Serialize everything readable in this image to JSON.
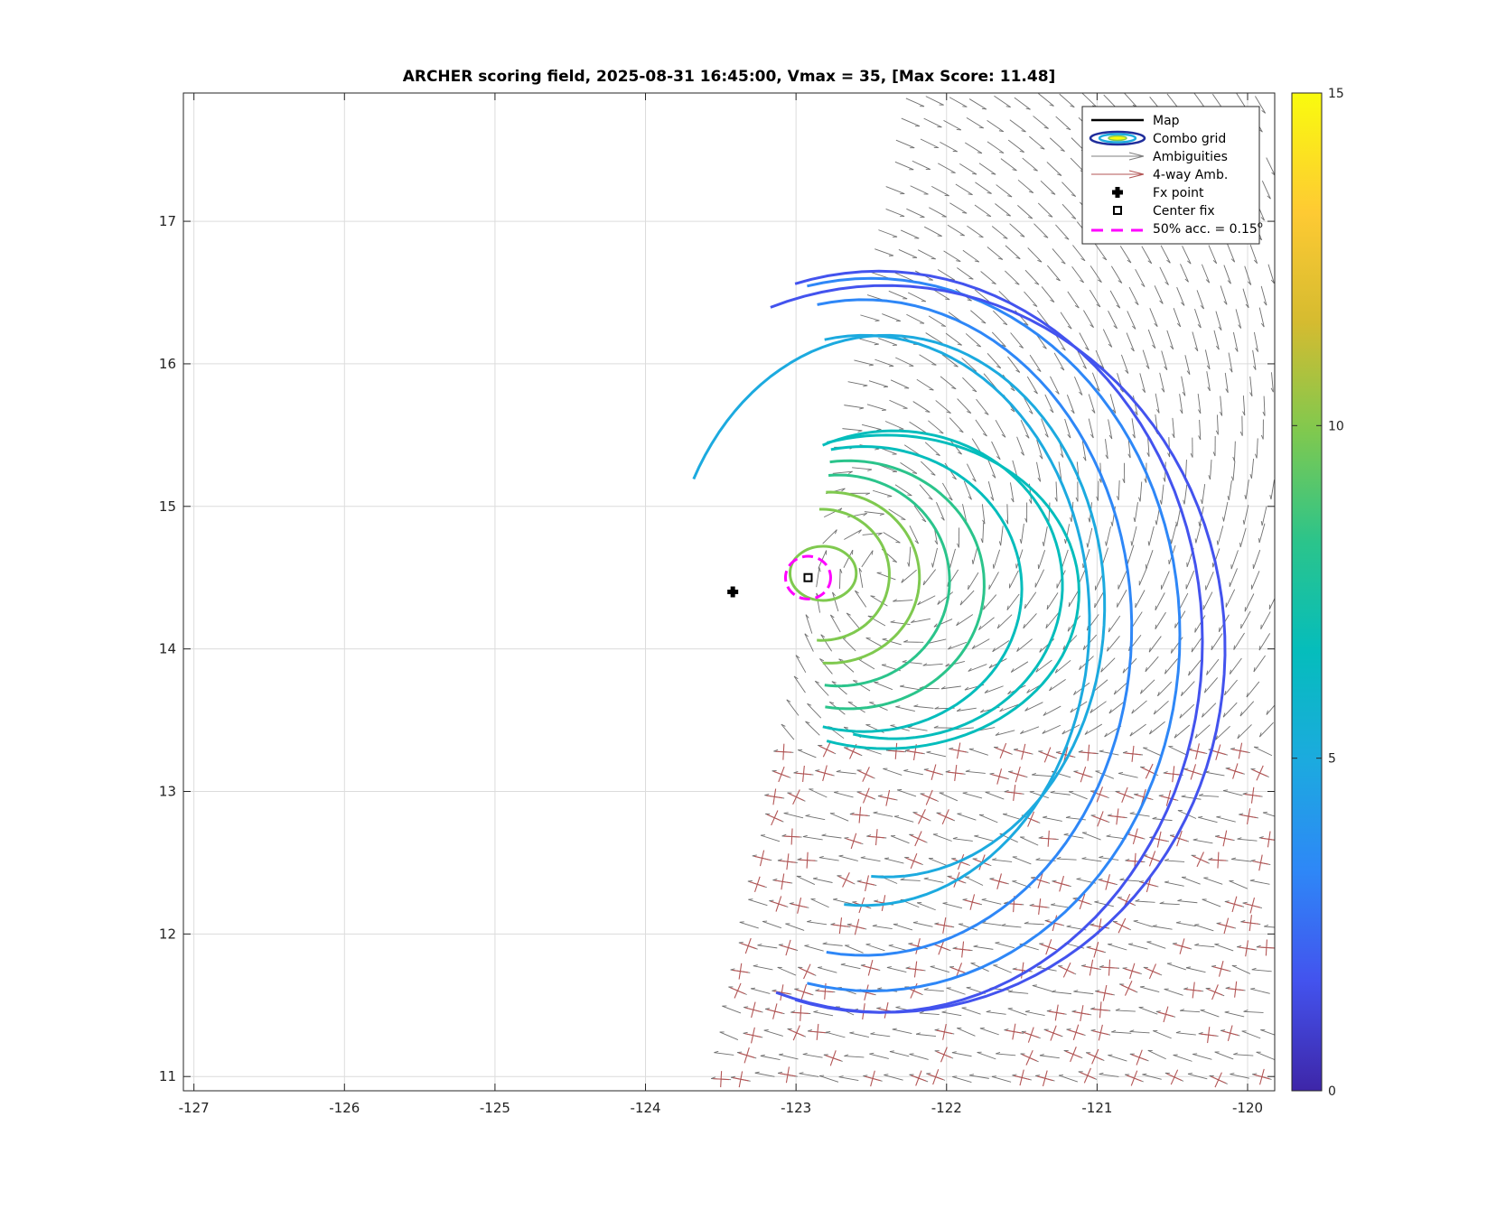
{
  "chart_data": {
    "type": "contour",
    "title": "ARCHER scoring field, 2025-08-31 16:45:00, Vmax = 35, [Max Score: 11.48]",
    "xlabel": "",
    "ylabel": "",
    "xlim": [
      -127.07,
      -119.82
    ],
    "ylim": [
      10.9,
      17.9
    ],
    "xticks": [
      -127,
      -126,
      -125,
      -124,
      -123,
      -122,
      -121,
      -120
    ],
    "xtick_labels": [
      "-127",
      "-126",
      "-125",
      "-124",
      "-123",
      "-122",
      "-121",
      "-120"
    ],
    "yticks": [
      11,
      12,
      13,
      14,
      15,
      16,
      17
    ],
    "ytick_labels": [
      "11",
      "12",
      "13",
      "14",
      "15",
      "16",
      "17"
    ],
    "grid": true,
    "colorbar": {
      "min": 0,
      "max": 15,
      "ticks": [
        0,
        5,
        10,
        15
      ],
      "tick_labels": [
        "0",
        "5",
        "10",
        "15"
      ],
      "colors": [
        "#3e26a8",
        "#4353ee",
        "#2e87f7",
        "#1caadf",
        "#05bdbc",
        "#2bc48b",
        "#7fc94f",
        "#d5bb30",
        "#feca33",
        "#f9fb0e"
      ]
    },
    "legend": {
      "placement": "top-right",
      "entries": [
        {
          "label": "Map",
          "kind": "line",
          "color": "#000000"
        },
        {
          "label": "Combo grid",
          "kind": "contour",
          "color": "#1f2d9b"
        },
        {
          "label": "Ambiguities",
          "kind": "arrow",
          "color": "#7f7f7f"
        },
        {
          "label": "4-way Amb.",
          "kind": "arrow",
          "color": "#b35555"
        },
        {
          "label": "Fx point",
          "kind": "marker-plus",
          "color": "#000000"
        },
        {
          "label": "Center fix",
          "kind": "marker-square",
          "color": "#000000"
        },
        {
          "label": "50% acc. = 0.15",
          "suffix": "o",
          "kind": "dashed-line",
          "color": "#ff00ff"
        }
      ]
    },
    "fx_point": {
      "lon": -123.42,
      "lat": 14.4
    },
    "center_fix": {
      "lon": -122.92,
      "lat": 14.5
    },
    "accuracy_circle": {
      "lon": -122.92,
      "lat": 14.5,
      "radius_deg": 0.15,
      "color": "#ff00ff"
    },
    "max_score": 11.48,
    "contours": [
      {
        "level": 10.5,
        "closed": true,
        "cx": -122.82,
        "cy": 14.53,
        "rx": 0.22,
        "ry": 0.19
      },
      {
        "level": 9.8,
        "closed": false,
        "cx": -122.83,
        "cy": 14.52,
        "rx": 0.45,
        "ry": 0.46,
        "a0": 92,
        "a1": 265
      },
      {
        "level": 9.2,
        "closed": false,
        "cx": -122.78,
        "cy": 14.5,
        "rx": 0.6,
        "ry": 0.6,
        "a0": 92,
        "a1": 265
      },
      {
        "level": 8.6,
        "closed": false,
        "cx": -122.72,
        "cy": 14.48,
        "rx": 0.74,
        "ry": 0.74,
        "a0": 95,
        "a1": 262
      },
      {
        "level": 8.0,
        "closed": false,
        "cx": -122.65,
        "cy": 14.45,
        "rx": 0.9,
        "ry": 0.87,
        "a0": 98,
        "a1": 258
      },
      {
        "level": 7.3,
        "closed": false,
        "cx": -122.55,
        "cy": 14.42,
        "rx": 1.05,
        "ry": 1.0,
        "a0": 102,
        "a1": 255
      },
      {
        "level": 6.6,
        "closed": false,
        "cx": -122.4,
        "cy": 14.4,
        "rx": 1.28,
        "ry": 1.1,
        "a0": 108,
        "a1": 250
      },
      {
        "level": 5.9,
        "closed": false,
        "cx": -122.35,
        "cy": 14.45,
        "rx": 1.12,
        "ry": 1.08,
        "a0": 115,
        "a1": 255
      },
      {
        "level": 5.0,
        "closed": false,
        "cx": -122.4,
        "cy": 14.3,
        "rx": 1.45,
        "ry": 1.9,
        "a0": 152,
        "a1": 265
      },
      {
        "level": 4.3,
        "closed": false,
        "cx": -122.55,
        "cy": 14.2,
        "rx": 1.5,
        "ry": 2.0,
        "a0": 100,
        "a1": 265
      },
      {
        "level": 3.6,
        "closed": false,
        "cx": -122.55,
        "cy": 14.15,
        "rx": 1.78,
        "ry": 2.3,
        "a0": 100,
        "a1": 262
      },
      {
        "level": 2.9,
        "closed": false,
        "cx": -122.5,
        "cy": 14.1,
        "rx": 2.05,
        "ry": 2.5,
        "a0": 102,
        "a1": 258
      },
      {
        "level": 2.2,
        "closed": false,
        "cx": -122.45,
        "cy": 14.05,
        "rx": 2.15,
        "ry": 2.6,
        "a0": 105,
        "a1": 255
      },
      {
        "level": 1.3,
        "closed": false,
        "cx": -122.4,
        "cy": 14.0,
        "rx": 2.25,
        "ry": 2.55,
        "a0": 110,
        "a1": 250
      }
    ]
  }
}
